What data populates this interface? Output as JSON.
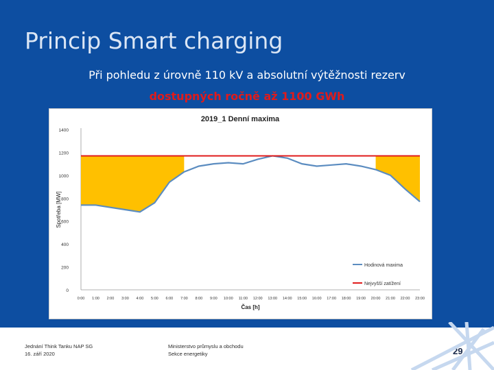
{
  "slide": {
    "title": "Princip Smart charging",
    "subtitle_line1": "Při pohledu z úrovně 110 kV a absolutní výtěžnosti rezerv",
    "subtitle_line2": "dostupných ročně až 1100 GWh",
    "footer_left_line1": "Jednání Think Tanku NAP SG",
    "footer_left_line2": "16. září 2020",
    "footer_mid_line1": "Ministerstvo průmyslu a obchodu",
    "footer_mid_line2": "Sekce energetiky",
    "page_number": "29",
    "colors": {
      "background": "#0d4ea1",
      "accent_red": "#e01b1b"
    }
  },
  "chart_data": {
    "type": "area",
    "title": "2019_1 Denní maxima",
    "xlabel": "Čas [h]",
    "ylabel": "Spotřeba [MW]",
    "ylim": [
      0,
      1400
    ],
    "yticks": [
      0,
      200,
      400,
      600,
      800,
      1000,
      1200,
      1400
    ],
    "x": [
      "0:00",
      "1:00",
      "2:00",
      "3:00",
      "4:00",
      "5:00",
      "6:00",
      "7:00",
      "8:00",
      "9:00",
      "10:00",
      "11:00",
      "12:00",
      "13:00",
      "14:00",
      "15:00",
      "16:00",
      "17:00",
      "18:00",
      "19:00",
      "20:00",
      "21:00",
      "22:00",
      "23:00"
    ],
    "series": [
      {
        "name": "Hodinová maxima",
        "color": "#5b8cc0",
        "values": [
          740,
          740,
          720,
          700,
          680,
          760,
          940,
          1030,
          1080,
          1100,
          1110,
          1100,
          1140,
          1170,
          1150,
          1100,
          1080,
          1090,
          1100,
          1080,
          1050,
          1000,
          880,
          770
        ]
      },
      {
        "name": "Nejvyšší zatížení",
        "color": "#e01b1b",
        "constant": 1170
      }
    ],
    "fill": {
      "color": "#ffc000",
      "ranges": [
        [
          0,
          7
        ],
        [
          20,
          23
        ]
      ]
    },
    "legend_position": "bottom-right",
    "grid": false
  }
}
